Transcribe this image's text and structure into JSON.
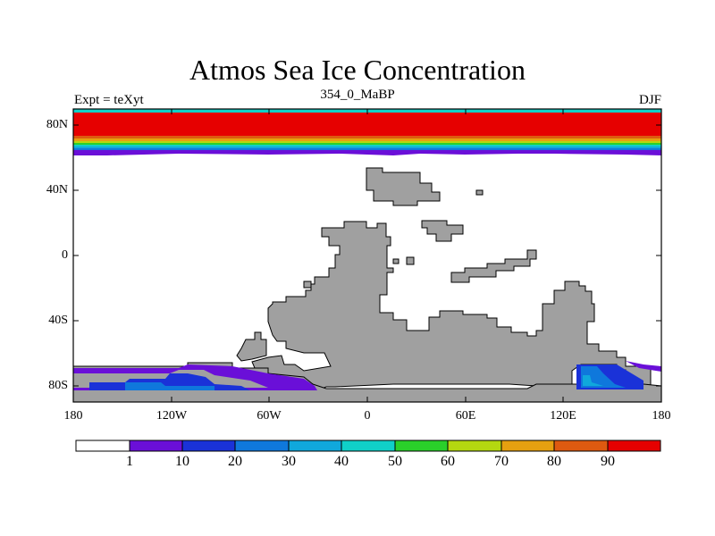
{
  "title": "Atmos Sea Ice Concentration",
  "left_label": "Expt = teXyt",
  "center_label": "354_0_MaBP",
  "right_label": "DJF",
  "y_ticks": [
    "80N",
    "40N",
    "0",
    "40S",
    "80S"
  ],
  "x_ticks": [
    "180",
    "120W",
    "60W",
    "0",
    "60E",
    "120E",
    "180"
  ],
  "colorbar": {
    "colors": [
      "#ffffff",
      "#6a0fd8",
      "#1a32d8",
      "#0f78dc",
      "#10a8dc",
      "#10d0c8",
      "#2ad02a",
      "#b4d810",
      "#e6a010",
      "#de5a10",
      "#e60000"
    ],
    "labels": [
      "1",
      "10",
      "20",
      "30",
      "40",
      "50",
      "60",
      "70",
      "80",
      "90"
    ]
  },
  "colors": {
    "land": "#a0a0a0",
    "ocean": "#ffffff"
  }
}
